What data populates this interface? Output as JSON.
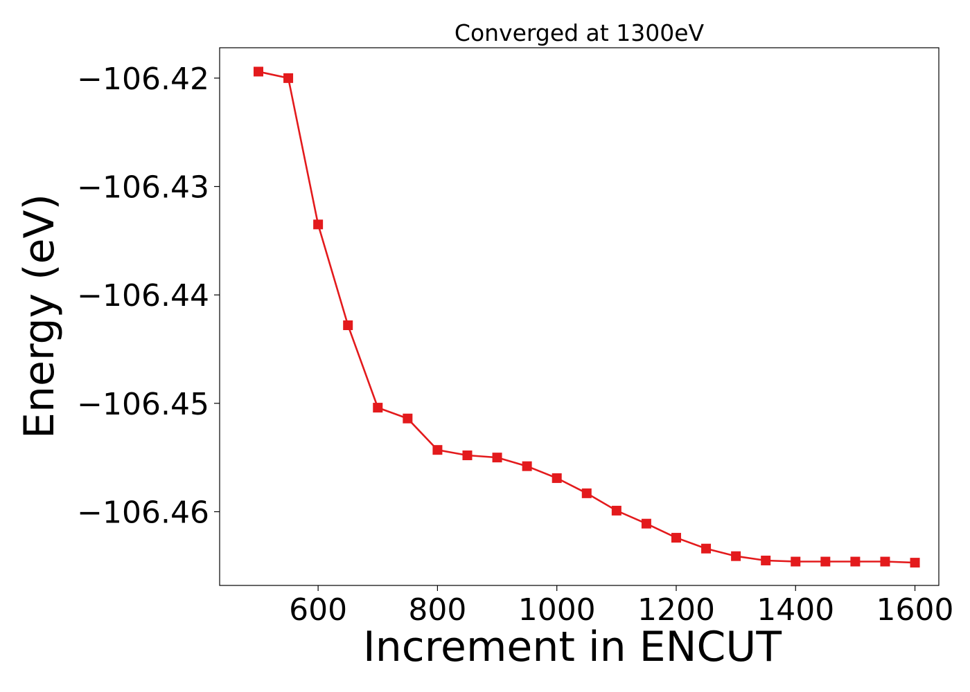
{
  "chart_data": {
    "type": "line",
    "title": "Converged at 1300eV",
    "xlabel": "Increment in ENCUT",
    "ylabel": "Energy (eV)",
    "xlim": [
      435,
      1640
    ],
    "ylim": [
      -106.4668,
      -106.4172
    ],
    "xticks": [
      600,
      800,
      1000,
      1200,
      1400,
      1600
    ],
    "xtick_labels": [
      "600",
      "800",
      "1000",
      "1200",
      "1400",
      "1600"
    ],
    "yticks": [
      -106.42,
      -106.43,
      -106.44,
      -106.45,
      -106.46
    ],
    "ytick_labels": [
      "−106.42",
      "−106.43",
      "−106.44",
      "−106.45",
      "−106.46"
    ],
    "grid": false,
    "legend": "none",
    "series": [
      {
        "color": "#e31a1c",
        "marker": "square",
        "x": [
          500,
          550,
          600,
          650,
          700,
          750,
          800,
          850,
          900,
          950,
          1000,
          1050,
          1100,
          1150,
          1200,
          1250,
          1300,
          1350,
          1400,
          1450,
          1500,
          1550,
          1600
        ],
        "y": [
          -106.4194,
          -106.42,
          -106.4335,
          -106.4428,
          -106.4504,
          -106.4514,
          -106.4543,
          -106.4548,
          -106.455,
          -106.4558,
          -106.4569,
          -106.4583,
          -106.4599,
          -106.4611,
          -106.4624,
          -106.4634,
          -106.4641,
          -106.4645,
          -106.4646,
          -106.4646,
          -106.4646,
          -106.4646,
          -106.4647
        ]
      }
    ]
  }
}
